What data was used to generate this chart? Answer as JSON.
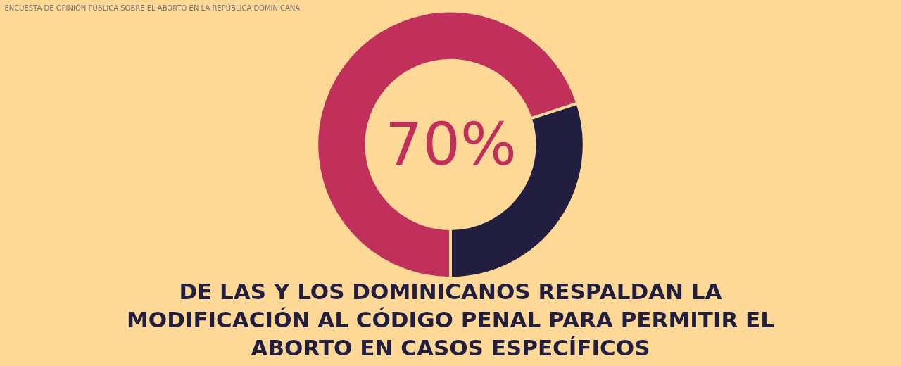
{
  "chart_data": {
    "type": "donut",
    "title": "ENCUESTA DE OPINIÓN PÚBLICA SOBRE EL ABORTO EN LA REPÚBLICA DOMINICANA",
    "subtitle": "DE LAS Y LOS DOMINICANOS RESPALDAN LA MODIFICACIÓN AL CÓDIGO PENAL PARA PERMITIR EL ABORTO EN CASOS ESPECÍFICOS",
    "categories": [
      null,
      null
    ],
    "values": [
      70,
      30
    ],
    "colors": [
      "#c0305a",
      "#221e3f"
    ],
    "annotations": [
      "70%"
    ]
  }
}
